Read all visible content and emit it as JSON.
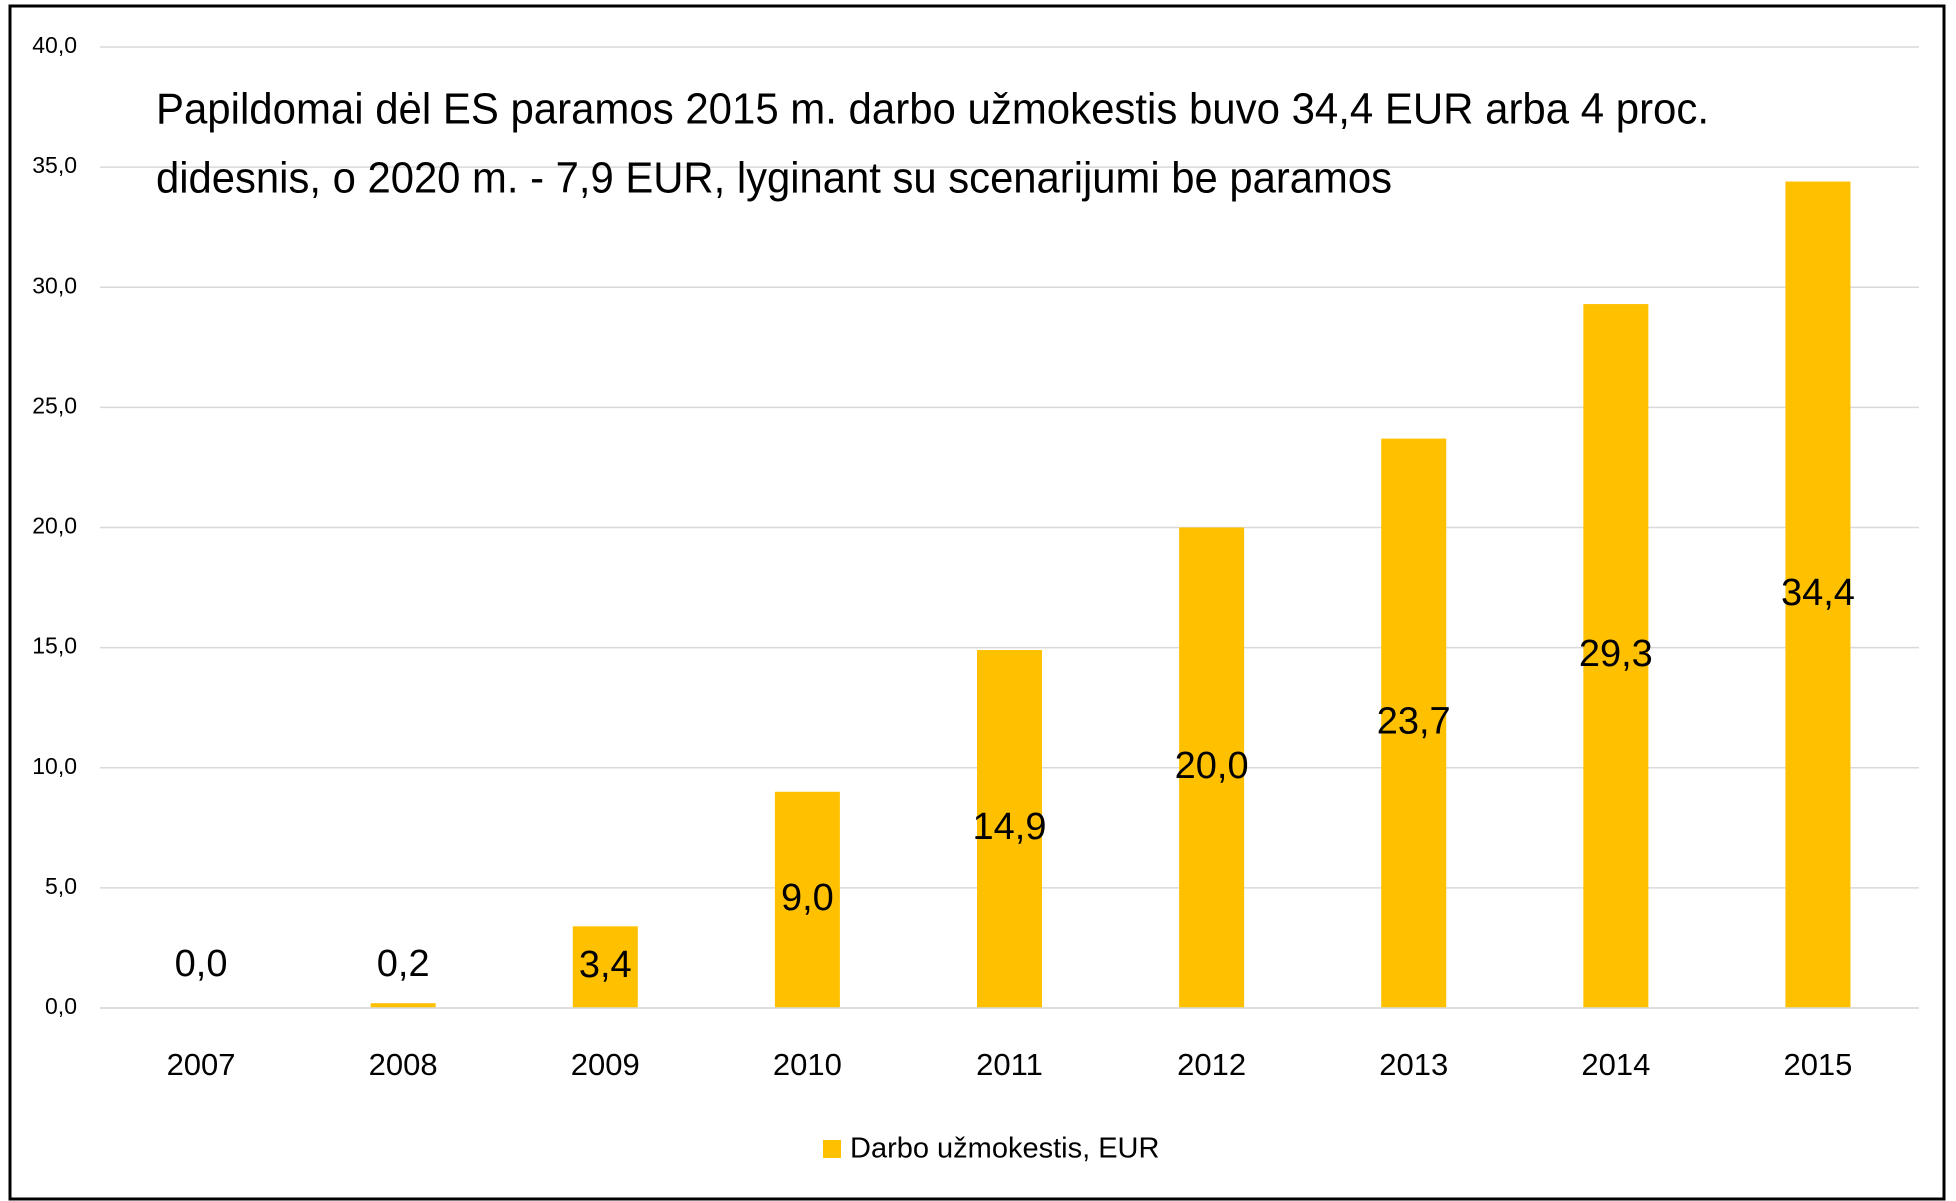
{
  "chart_data": {
    "type": "bar",
    "title": [
      "Papildomai dėl ES paramos 2015 m. darbo užmokestis buvo  34,4 EUR arba 4 proc.",
      "didesnis, o 2020 m. - 7,9 EUR, lyginant su scenarijumi be paramos"
    ],
    "categories": [
      "2007",
      "2008",
      "2009",
      "2010",
      "2011",
      "2012",
      "2013",
      "2014",
      "2015"
    ],
    "series": [
      {
        "name": "Darbo užmokestis, EUR",
        "color": "#ffc000",
        "values": [
          0.0,
          0.2,
          3.4,
          9.0,
          14.9,
          20.0,
          23.7,
          29.3,
          34.4
        ],
        "value_labels": [
          "0,0",
          "0,2",
          "3,4",
          "9,0",
          "14,9",
          "20,0",
          "23,7",
          "29,3",
          "34,4"
        ]
      }
    ],
    "ylim": [
      0,
      40
    ],
    "yticks": [
      {
        "value": 0,
        "label": "0,0"
      },
      {
        "value": 5,
        "label": "5,0"
      },
      {
        "value": 10,
        "label": "10,0"
      },
      {
        "value": 15,
        "label": "15,0"
      },
      {
        "value": 20,
        "label": "20,0"
      },
      {
        "value": 25,
        "label": "25,0"
      },
      {
        "value": 30,
        "label": "30,0"
      },
      {
        "value": 35,
        "label": "35,0"
      },
      {
        "value": 40,
        "label": "40,0"
      }
    ],
    "grid": true,
    "legend": "bottom"
  }
}
